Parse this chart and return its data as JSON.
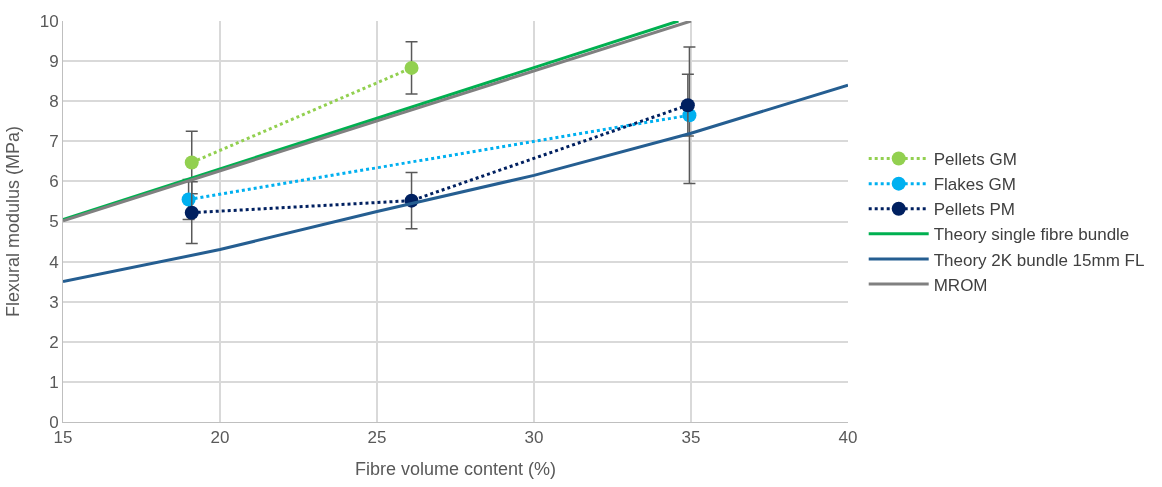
{
  "chart_data": {
    "type": "line",
    "xlabel": "Fibre volume content (%)",
    "ylabel": "Flexural modulus (MPa)",
    "xlim": [
      15,
      40
    ],
    "xticks": [
      15,
      20,
      25,
      30,
      35,
      40
    ],
    "ylim": [
      0,
      10
    ],
    "yticks": [
      0,
      1,
      2,
      3,
      4,
      5,
      6,
      7,
      8,
      9,
      10
    ],
    "grid": true,
    "legend": "right",
    "series": [
      {
        "name": "Pellets GM",
        "color": "#92d050",
        "x": [
          19.1,
          26.1
        ],
        "values": [
          6.47,
          8.83
        ],
        "errors": [
          0.78,
          0.65
        ],
        "marker": "circle",
        "line_style": "dotted"
      },
      {
        "name": "Flakes GM",
        "color": "#00b0f0",
        "x": [
          19.0,
          34.95
        ],
        "values": [
          5.55,
          7.65
        ],
        "errors": [
          0.5,
          1.7
        ],
        "marker": "circle",
        "line_style": "dotted"
      },
      {
        "name": "Pellets PM",
        "color": "#002060",
        "x": [
          19.1,
          26.1,
          34.9
        ],
        "values": [
          5.22,
          5.52,
          7.9
        ],
        "errors": [
          0.77,
          0.7,
          0.77
        ],
        "marker": "circle",
        "line_style": "dotted"
      },
      {
        "name": "Theory single fibre bundle",
        "color": "#00b050",
        "x": [
          15,
          34.6
        ],
        "values": [
          5.05,
          10
        ],
        "marker": "none",
        "line_style": "solid"
      },
      {
        "name": "Theory 2K bundle 15mm FL",
        "color": "#255e91",
        "x": [
          15,
          20,
          25,
          30,
          35,
          40
        ],
        "values": [
          3.5,
          4.3,
          5.25,
          6.15,
          7.2,
          8.4
        ],
        "marker": "none",
        "line_style": "solid"
      },
      {
        "name": "MROM",
        "color": "#808080",
        "x": [
          15,
          35
        ],
        "values": [
          5.02,
          10
        ],
        "marker": "none",
        "line_style": "solid"
      }
    ]
  }
}
